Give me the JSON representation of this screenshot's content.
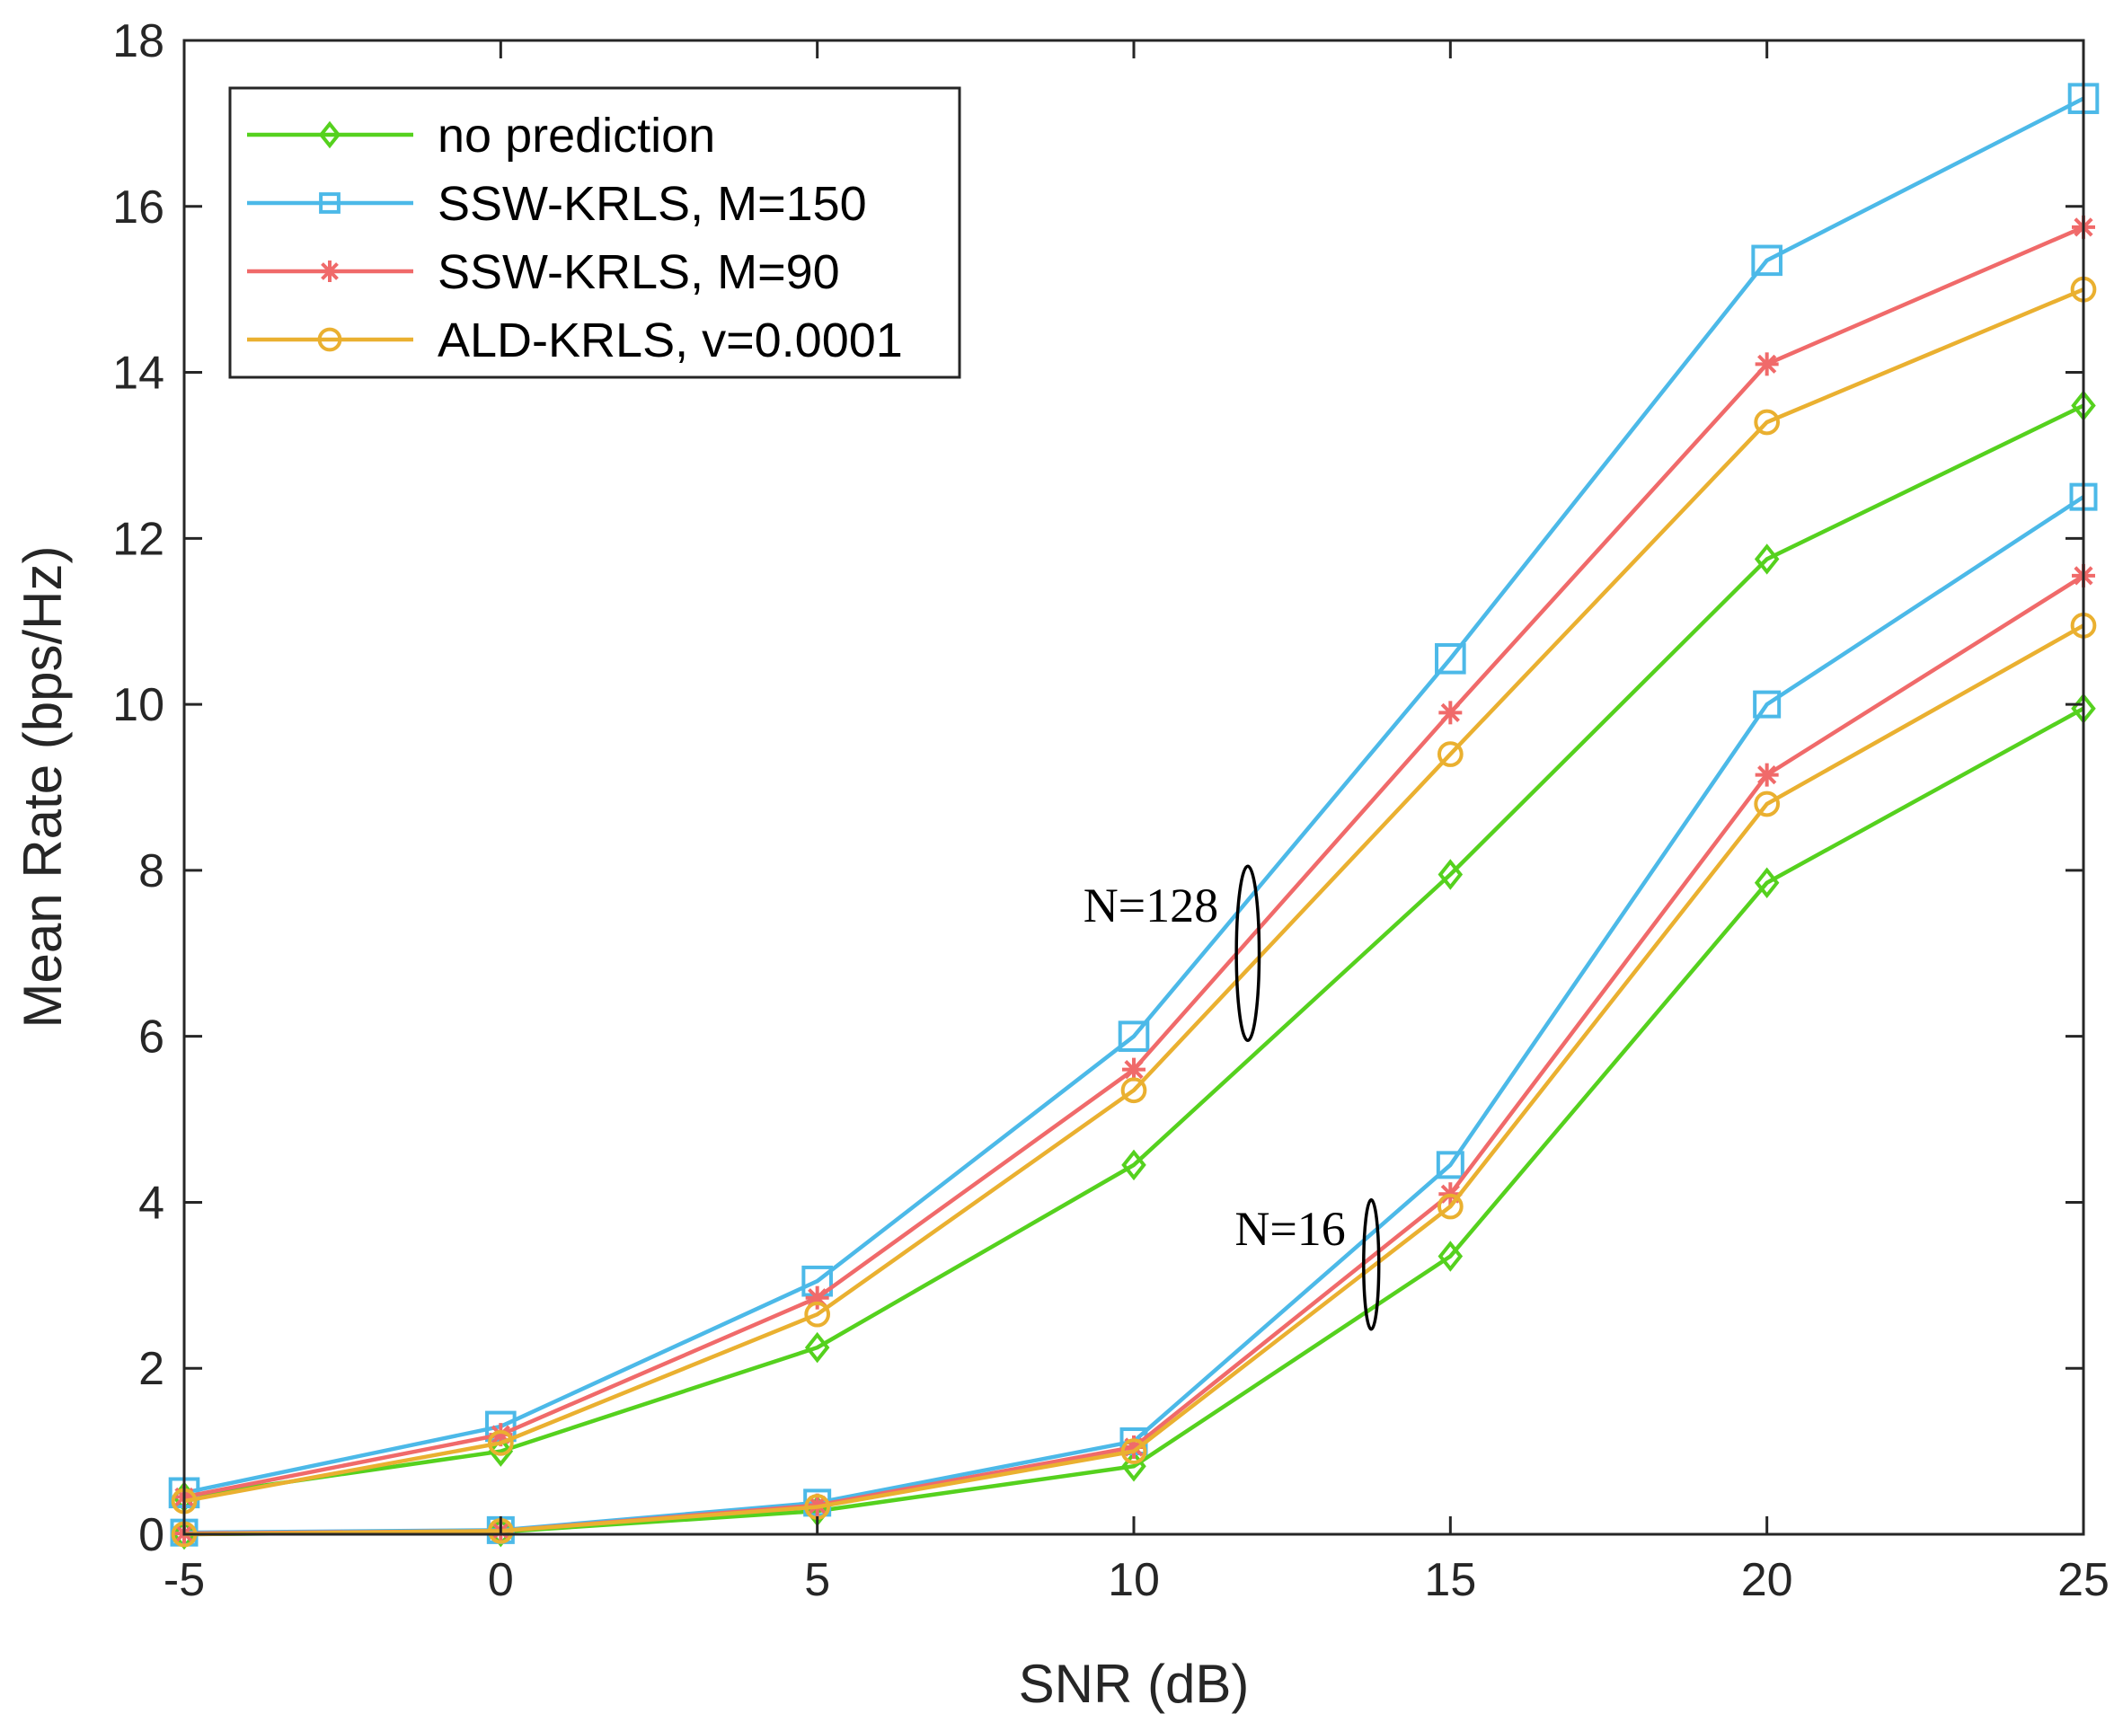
{
  "chart_data": {
    "type": "line",
    "title": "",
    "xlabel": "SNR (dB)",
    "ylabel": "Mean Rate (bps/Hz)",
    "xlim": [
      -5,
      25
    ],
    "ylim": [
      0,
      18
    ],
    "xticks": [
      "-5",
      "0",
      "5",
      "10",
      "15",
      "20",
      "25"
    ],
    "yticks": [
      "0",
      "2",
      "4",
      "6",
      "8",
      "10",
      "12",
      "14",
      "16",
      "18"
    ],
    "x": [
      -5,
      0,
      5,
      10,
      15,
      20,
      25
    ],
    "grid": false,
    "legend_position": "top-left",
    "legend": [
      {
        "name": "no prediction",
        "color": "#55d11e",
        "marker": "diamond"
      },
      {
        "name": "SSW-KRLS, M=150",
        "color": "#4cb9e8",
        "marker": "square"
      },
      {
        "name": "SSW-KRLS, M=90",
        "color": "#f06a6a",
        "marker": "asterisk"
      },
      {
        "name": "ALD-KRLS, v=0.0001",
        "color": "#eab030",
        "marker": "circle"
      }
    ],
    "series": [
      {
        "name": "no prediction",
        "group": "N=128",
        "color": "#55d11e",
        "marker": "diamond",
        "values": [
          0.45,
          1.0,
          2.25,
          4.45,
          7.95,
          11.75,
          13.6
        ]
      },
      {
        "name": "SSW-KRLS, M=150",
        "group": "N=128",
        "color": "#4cb9e8",
        "marker": "square",
        "values": [
          0.5,
          1.3,
          3.05,
          6.0,
          10.55,
          15.35,
          17.3
        ]
      },
      {
        "name": "SSW-KRLS, M=90",
        "group": "N=128",
        "color": "#f06a6a",
        "marker": "asterisk",
        "values": [
          0.45,
          1.2,
          2.85,
          5.6,
          9.9,
          14.1,
          15.75
        ]
      },
      {
        "name": "ALD-KRLS, v=0.0001",
        "group": "N=128",
        "color": "#eab030",
        "marker": "circle",
        "values": [
          0.4,
          1.1,
          2.65,
          5.35,
          9.4,
          13.4,
          15.0
        ]
      },
      {
        "name": "no prediction",
        "group": "N=16",
        "color": "#55d11e",
        "marker": "diamond",
        "values": [
          0.0,
          0.03,
          0.28,
          0.82,
          3.35,
          7.85,
          9.95
        ]
      },
      {
        "name": "SSW-KRLS, M=150",
        "group": "N=16",
        "color": "#4cb9e8",
        "marker": "square",
        "values": [
          0.02,
          0.05,
          0.38,
          1.12,
          4.45,
          10.0,
          12.5
        ]
      },
      {
        "name": "SSW-KRLS, M=90",
        "group": "N=16",
        "color": "#f06a6a",
        "marker": "asterisk",
        "values": [
          0.01,
          0.04,
          0.35,
          1.05,
          4.1,
          9.15,
          11.55
        ]
      },
      {
        "name": "ALD-KRLS, v=0.0001",
        "group": "N=16",
        "color": "#eab030",
        "marker": "circle",
        "values": [
          0.0,
          0.04,
          0.33,
          1.0,
          3.95,
          8.8,
          10.95
        ]
      }
    ],
    "annotations": [
      {
        "text": "N=128",
        "ellipse_center": [
          11.8,
          7.0
        ],
        "ellipse_radius": [
          0.18,
          1.05
        ]
      },
      {
        "text": "N=16",
        "ellipse_center": [
          13.75,
          3.25
        ],
        "ellipse_radius": [
          0.12,
          0.78
        ]
      }
    ]
  }
}
